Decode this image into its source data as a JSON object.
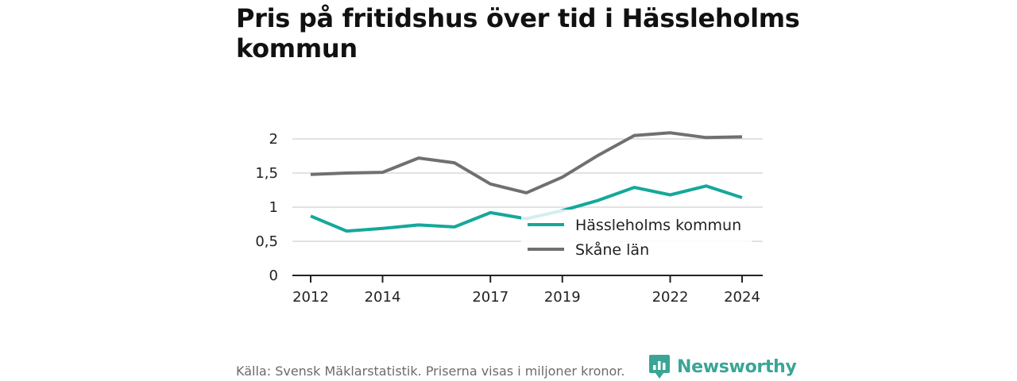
{
  "title": "Pris på fritidshus över tid i Hässleholms kommun",
  "source": "Källa: Svensk Mäklarstatistik. Priserna visas i miljoner kronor.",
  "brand": {
    "name": "Newsworthy",
    "icon": "newsworthy-logo-icon",
    "color": "#3aa596"
  },
  "chart_data": {
    "type": "line",
    "title": "Pris på fritidshus över tid i Hässleholms kommun",
    "x": [
      2012,
      2013,
      2014,
      2015,
      2016,
      2017,
      2018,
      2019,
      2020,
      2021,
      2022,
      2023,
      2024
    ],
    "x_ticks": [
      "2012",
      "2014",
      "2017",
      "2019",
      "2022",
      "2024"
    ],
    "y_ticks": [
      "0",
      "0,5",
      "1",
      "1,5",
      "2"
    ],
    "ylim": [
      0,
      2
    ],
    "grid": true,
    "legend": "inside-right",
    "series": [
      {
        "name": "Hässleholms kommun",
        "color": "#14a89a",
        "values": [
          0.87,
          0.65,
          0.69,
          0.74,
          0.71,
          0.92,
          0.83,
          0.95,
          1.1,
          1.29,
          1.18,
          1.31,
          1.14
        ]
      },
      {
        "name": "Skåne län",
        "color": "#707070",
        "values": [
          1.48,
          1.5,
          1.51,
          1.72,
          1.65,
          1.34,
          1.21,
          1.44,
          1.76,
          2.05,
          2.09,
          2.02,
          2.03
        ]
      }
    ]
  }
}
